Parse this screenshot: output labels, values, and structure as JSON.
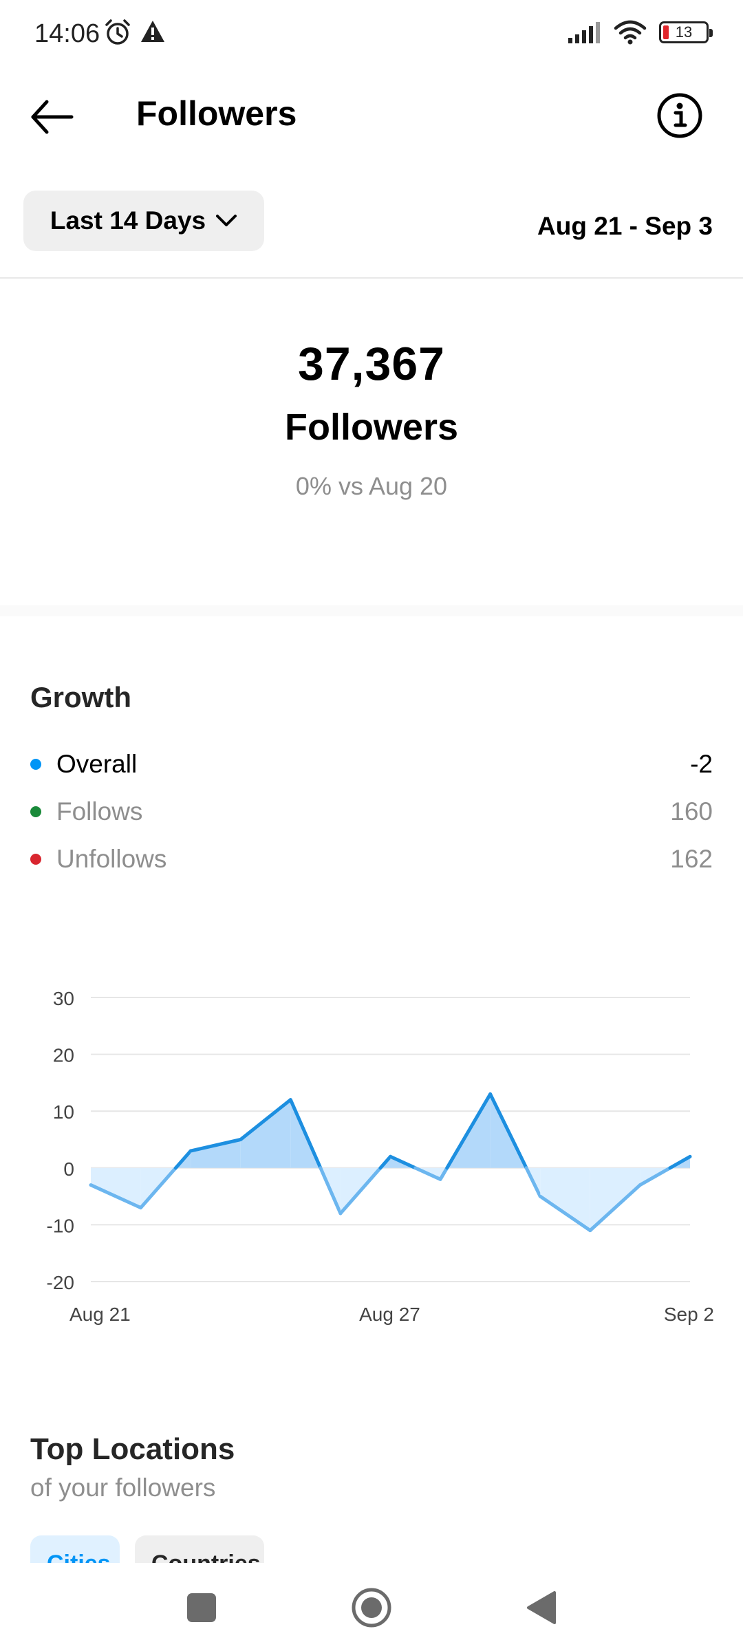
{
  "status_bar": {
    "time": "14:06",
    "battery": "13",
    "icons": [
      "alarm-icon",
      "warning-icon",
      "signal-icon",
      "wifi-icon",
      "battery-icon"
    ]
  },
  "header": {
    "title": "Followers",
    "back_icon": "arrow-left-icon",
    "info_icon": "info-icon"
  },
  "filter": {
    "range_label": "Last 14 Days",
    "date_range": "Aug 21 - Sep 3"
  },
  "summary": {
    "count": "37,367",
    "label": "Followers",
    "comparison": "0% vs Aug 20"
  },
  "growth": {
    "title": "Growth",
    "legend": [
      {
        "label": "Overall",
        "value": "-2",
        "color": "#0095f6"
      },
      {
        "label": "Follows",
        "value": "160",
        "color": "#1a8a3a"
      },
      {
        "label": "Unfollows",
        "value": "162",
        "color": "#d9262f"
      }
    ]
  },
  "chart_data": {
    "type": "area",
    "x": [
      "Aug 21",
      "Aug 22",
      "Aug 23",
      "Aug 24",
      "Aug 25",
      "Aug 26",
      "Aug 27",
      "Aug 28",
      "Aug 29",
      "Aug 30",
      "Aug 31",
      "Sep 1",
      "Sep 2"
    ],
    "series": [
      {
        "name": "Overall",
        "values": [
          -3,
          -7,
          3,
          5,
          12,
          -8,
          2,
          -2,
          13,
          -5,
          -11,
          -3,
          2
        ]
      }
    ],
    "xtick_labels": [
      "Aug 21",
      "Aug 27",
      "Sep 2"
    ],
    "yticks": [
      30,
      20,
      10,
      0,
      -10,
      -20
    ],
    "ylim": [
      -20,
      30
    ],
    "grid": true,
    "colors": {
      "positive_line": "#1d8fe0",
      "negative_line": "#6cb6ef",
      "positive_fill": "#b3d9fa",
      "negative_fill": "#dcefff"
    }
  },
  "locations": {
    "title": "Top Locations",
    "subtitle": "of your followers",
    "tabs": [
      "Cities",
      "Countries"
    ]
  },
  "nav": {
    "icons": [
      "square-icon",
      "circle-icon",
      "triangle-back-icon"
    ]
  }
}
